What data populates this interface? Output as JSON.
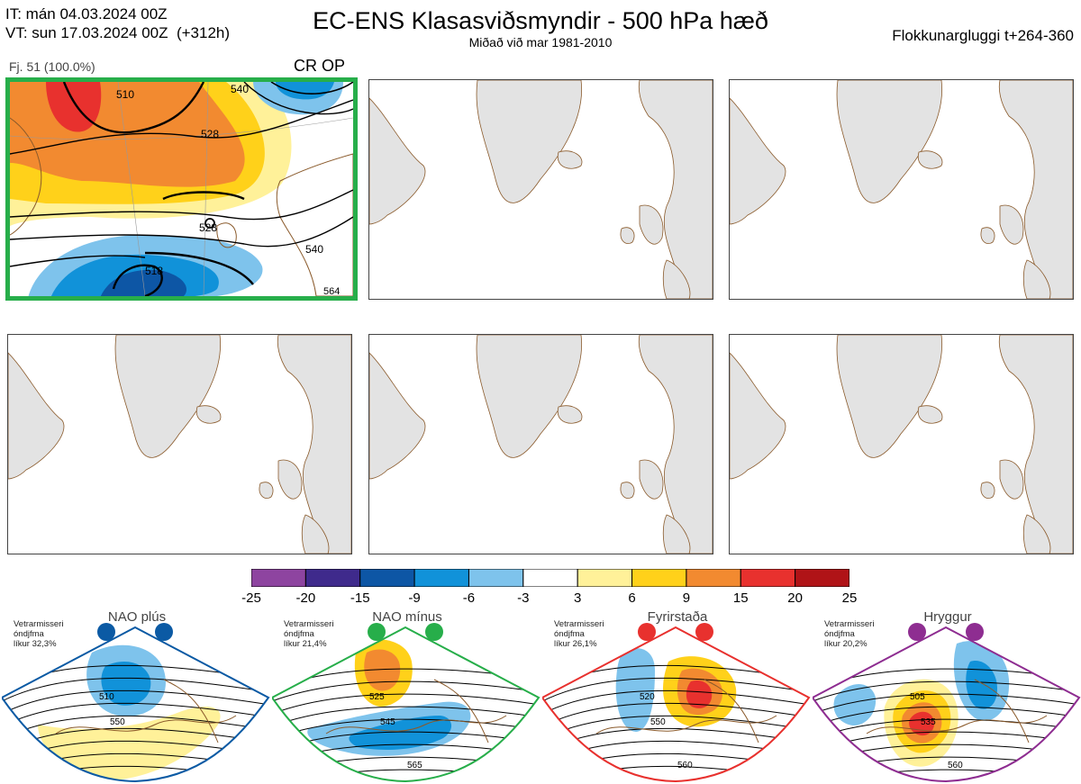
{
  "header": {
    "it": "IT: mán 04.03.2024 00Z",
    "vt": "VT: sun 17.03.2024 00Z  (+312h)",
    "title": "EC-ENS Klasasviðsmyndir - 500 hPa hæð",
    "subtitle": "Miðað við mar 1981-2010",
    "window": "Flokkunargluggi t+264-360"
  },
  "member_label": "Fj. 51 (100.0%)",
  "cluster_label": "CR OP",
  "map_contour_labels": [
    "510",
    "528",
    "528",
    "540",
    "540",
    "564",
    "518"
  ],
  "colorbar": {
    "labels": [
      "-25",
      "-20",
      "-15",
      "-9",
      "-6",
      "-3",
      "3",
      "6",
      "9",
      "15",
      "20",
      "25"
    ],
    "colors": [
      "#8e44a0",
      "#3f2a8c",
      "#0d56a5",
      "#1192d9",
      "#7ec3ec",
      "#ffffff",
      "#fff199",
      "#ffd11a",
      "#f28a30",
      "#e8312e",
      "#b01317"
    ]
  },
  "regimes": [
    {
      "name": "NAO plús",
      "info": [
        "Vetrarmisseri",
        "óndjfma",
        "líkur 32,3%"
      ],
      "color": "#0b5aa4",
      "labels": [
        "510",
        "550"
      ]
    },
    {
      "name": "NAO mínus",
      "info": [
        "Vetrarmisseri",
        "óndjfma",
        "líkur 21,4%"
      ],
      "color": "#27ae4a",
      "labels": [
        "525",
        "545",
        "565"
      ]
    },
    {
      "name": "Fyrirstaða",
      "info": [
        "Vetrarmisseri",
        "óndjfma",
        "líkur 26,1%"
      ],
      "color": "#e8312e",
      "labels": [
        "520",
        "550",
        "560"
      ]
    },
    {
      "name": "Hryggur",
      "info": [
        "Vetrarmisseri",
        "óndjfma",
        "líkur 20,2%"
      ],
      "color": "#8e2d91",
      "labels": [
        "505",
        "535",
        "560"
      ]
    }
  ]
}
